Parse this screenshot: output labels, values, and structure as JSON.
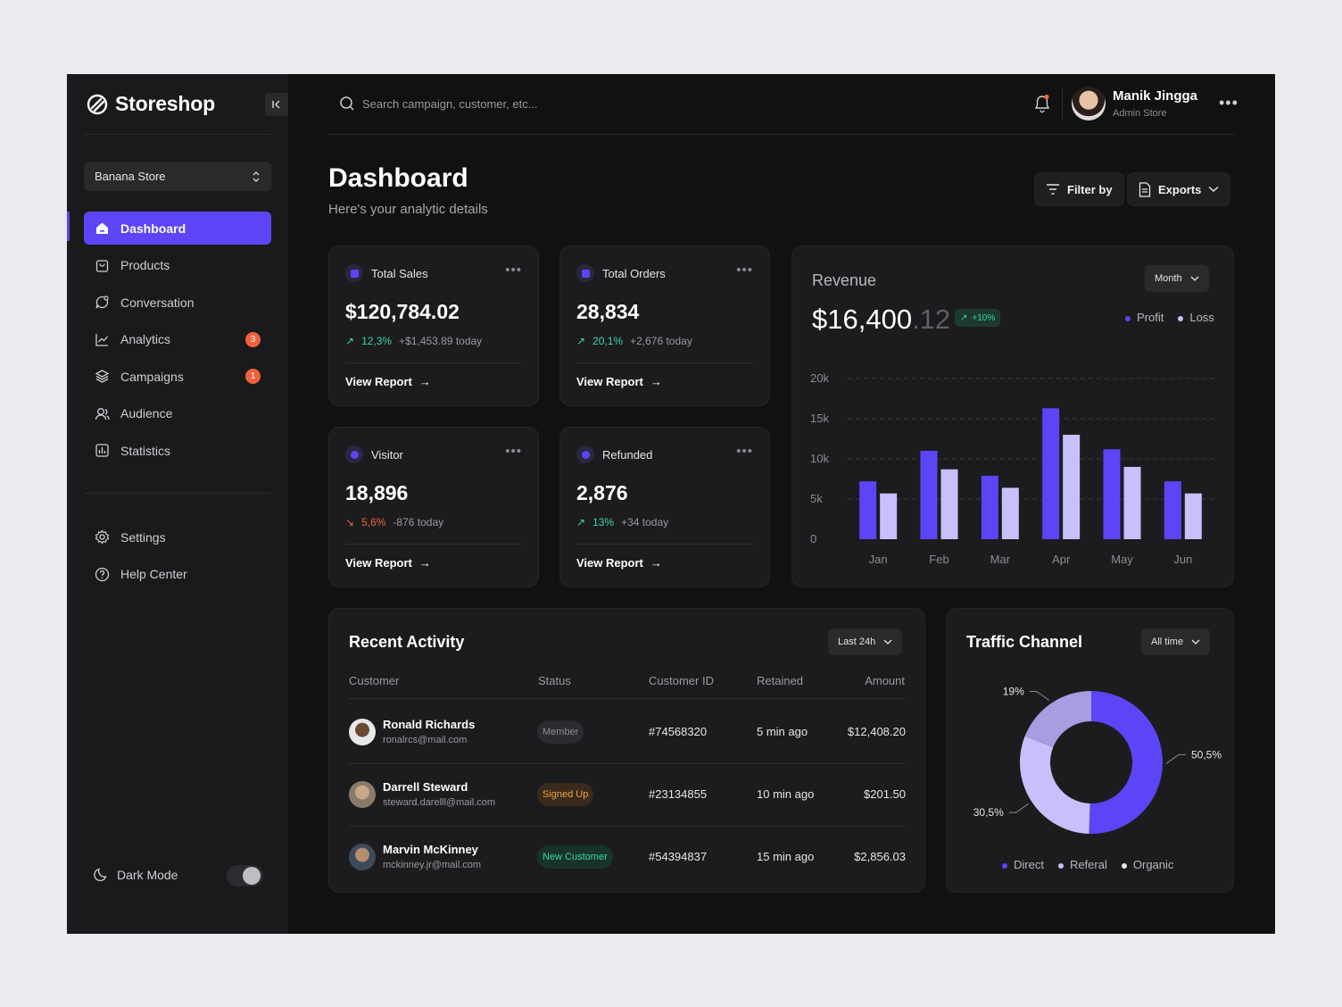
{
  "brand": {
    "name": "Storeshop"
  },
  "sidebar": {
    "store": "Banana Store",
    "items": [
      {
        "label": "Dashboard",
        "icon": "home-icon",
        "active": true
      },
      {
        "label": "Products",
        "icon": "shopping-bag-icon"
      },
      {
        "label": "Conversation",
        "icon": "chat-icon"
      },
      {
        "label": "Analytics",
        "icon": "chart-line-icon",
        "badge": "3"
      },
      {
        "label": "Campaigns",
        "icon": "layers-icon",
        "badge": "1"
      },
      {
        "label": "Audience",
        "icon": "users-icon"
      },
      {
        "label": "Statistics",
        "icon": "bar-chart-icon"
      }
    ],
    "bottom_items": [
      {
        "label": "Settings",
        "icon": "gear-icon"
      },
      {
        "label": "Help Center",
        "icon": "help-icon"
      }
    ],
    "dark_mode_label": "Dark Mode"
  },
  "topbar": {
    "search_placeholder": "Search campaign, customer, etc...",
    "user_name": "Manik Jingga",
    "user_role": "Admin Store"
  },
  "page": {
    "title": "Dashboard",
    "subtitle": "Here's your analytic details",
    "filter_label": "Filter by",
    "export_label": "Exports"
  },
  "stats": [
    {
      "title": "Total Sales",
      "value": "$120,784.02",
      "pct": "12,3%",
      "direction": "up",
      "today": "+$1,453.89 today",
      "link": "View Report"
    },
    {
      "title": "Total Orders",
      "value": "28,834",
      "pct": "20,1%",
      "direction": "up",
      "today": "+2,676 today",
      "link": "View Report"
    },
    {
      "title": "Visitor",
      "value": "18,896",
      "pct": "5,6%",
      "direction": "down",
      "today": "-876 today",
      "link": "View Report"
    },
    {
      "title": "Refunded",
      "value": "2,876",
      "pct": "13%",
      "direction": "up",
      "today": "+34 today",
      "link": "View Report"
    }
  ],
  "revenue": {
    "title": "Revenue",
    "value_main": "$16,400",
    "value_dec": ".12",
    "badge": "+10%",
    "period": "Month",
    "legend": [
      "Profit",
      "Loss"
    ]
  },
  "chart_data": [
    {
      "type": "bar",
      "categories": [
        "Jan",
        "Feb",
        "Mar",
        "Apr",
        "May",
        "Jun"
      ],
      "series": [
        {
          "name": "Profit",
          "values": [
            7200,
            11000,
            7900,
            16300,
            11200,
            7200
          ],
          "color": "#5b45f6"
        },
        {
          "name": "Loss",
          "values": [
            5700,
            8700,
            6400,
            13000,
            9000,
            5700
          ],
          "color": "#c7c0fb"
        }
      ],
      "yticks": [
        "20k",
        "15k",
        "10k",
        "5k",
        "0"
      ],
      "ylim": [
        0,
        20000
      ],
      "grid": true
    },
    {
      "type": "pie",
      "title": "Traffic Channel",
      "labels": [
        "Direct",
        "Referal",
        "Organic"
      ],
      "values": [
        50.5,
        30.5,
        19
      ],
      "value_labels": [
        "50,5%",
        "30,5%",
        "19%"
      ],
      "colors": [
        "#5b45f6",
        "#c7c0fb",
        "#a99ce0"
      ]
    }
  ],
  "activity": {
    "title": "Recent Activity",
    "filter": "Last 24h",
    "columns": [
      "Customer",
      "Status",
      "Customer ID",
      "Retained",
      "Amount"
    ],
    "rows": [
      {
        "name": "Ronald Richards",
        "email": "ronalrcs@mail.com",
        "status": "Member",
        "id": "#74568320",
        "retained": "5 min ago",
        "amount": "$12,408.20"
      },
      {
        "name": "Darrell Steward",
        "email": "steward.darelll@mail.com",
        "status": "Signed Up",
        "id": "#23134855",
        "retained": "10 min ago",
        "amount": "$201.50"
      },
      {
        "name": "Marvin McKinney",
        "email": "mckinney.jr@mail.com",
        "status": "New Customer",
        "id": "#54394837",
        "retained": "15 min ago",
        "amount": "$2,856.03"
      }
    ]
  },
  "traffic": {
    "title": "Traffic Channel",
    "filter": "All time"
  }
}
